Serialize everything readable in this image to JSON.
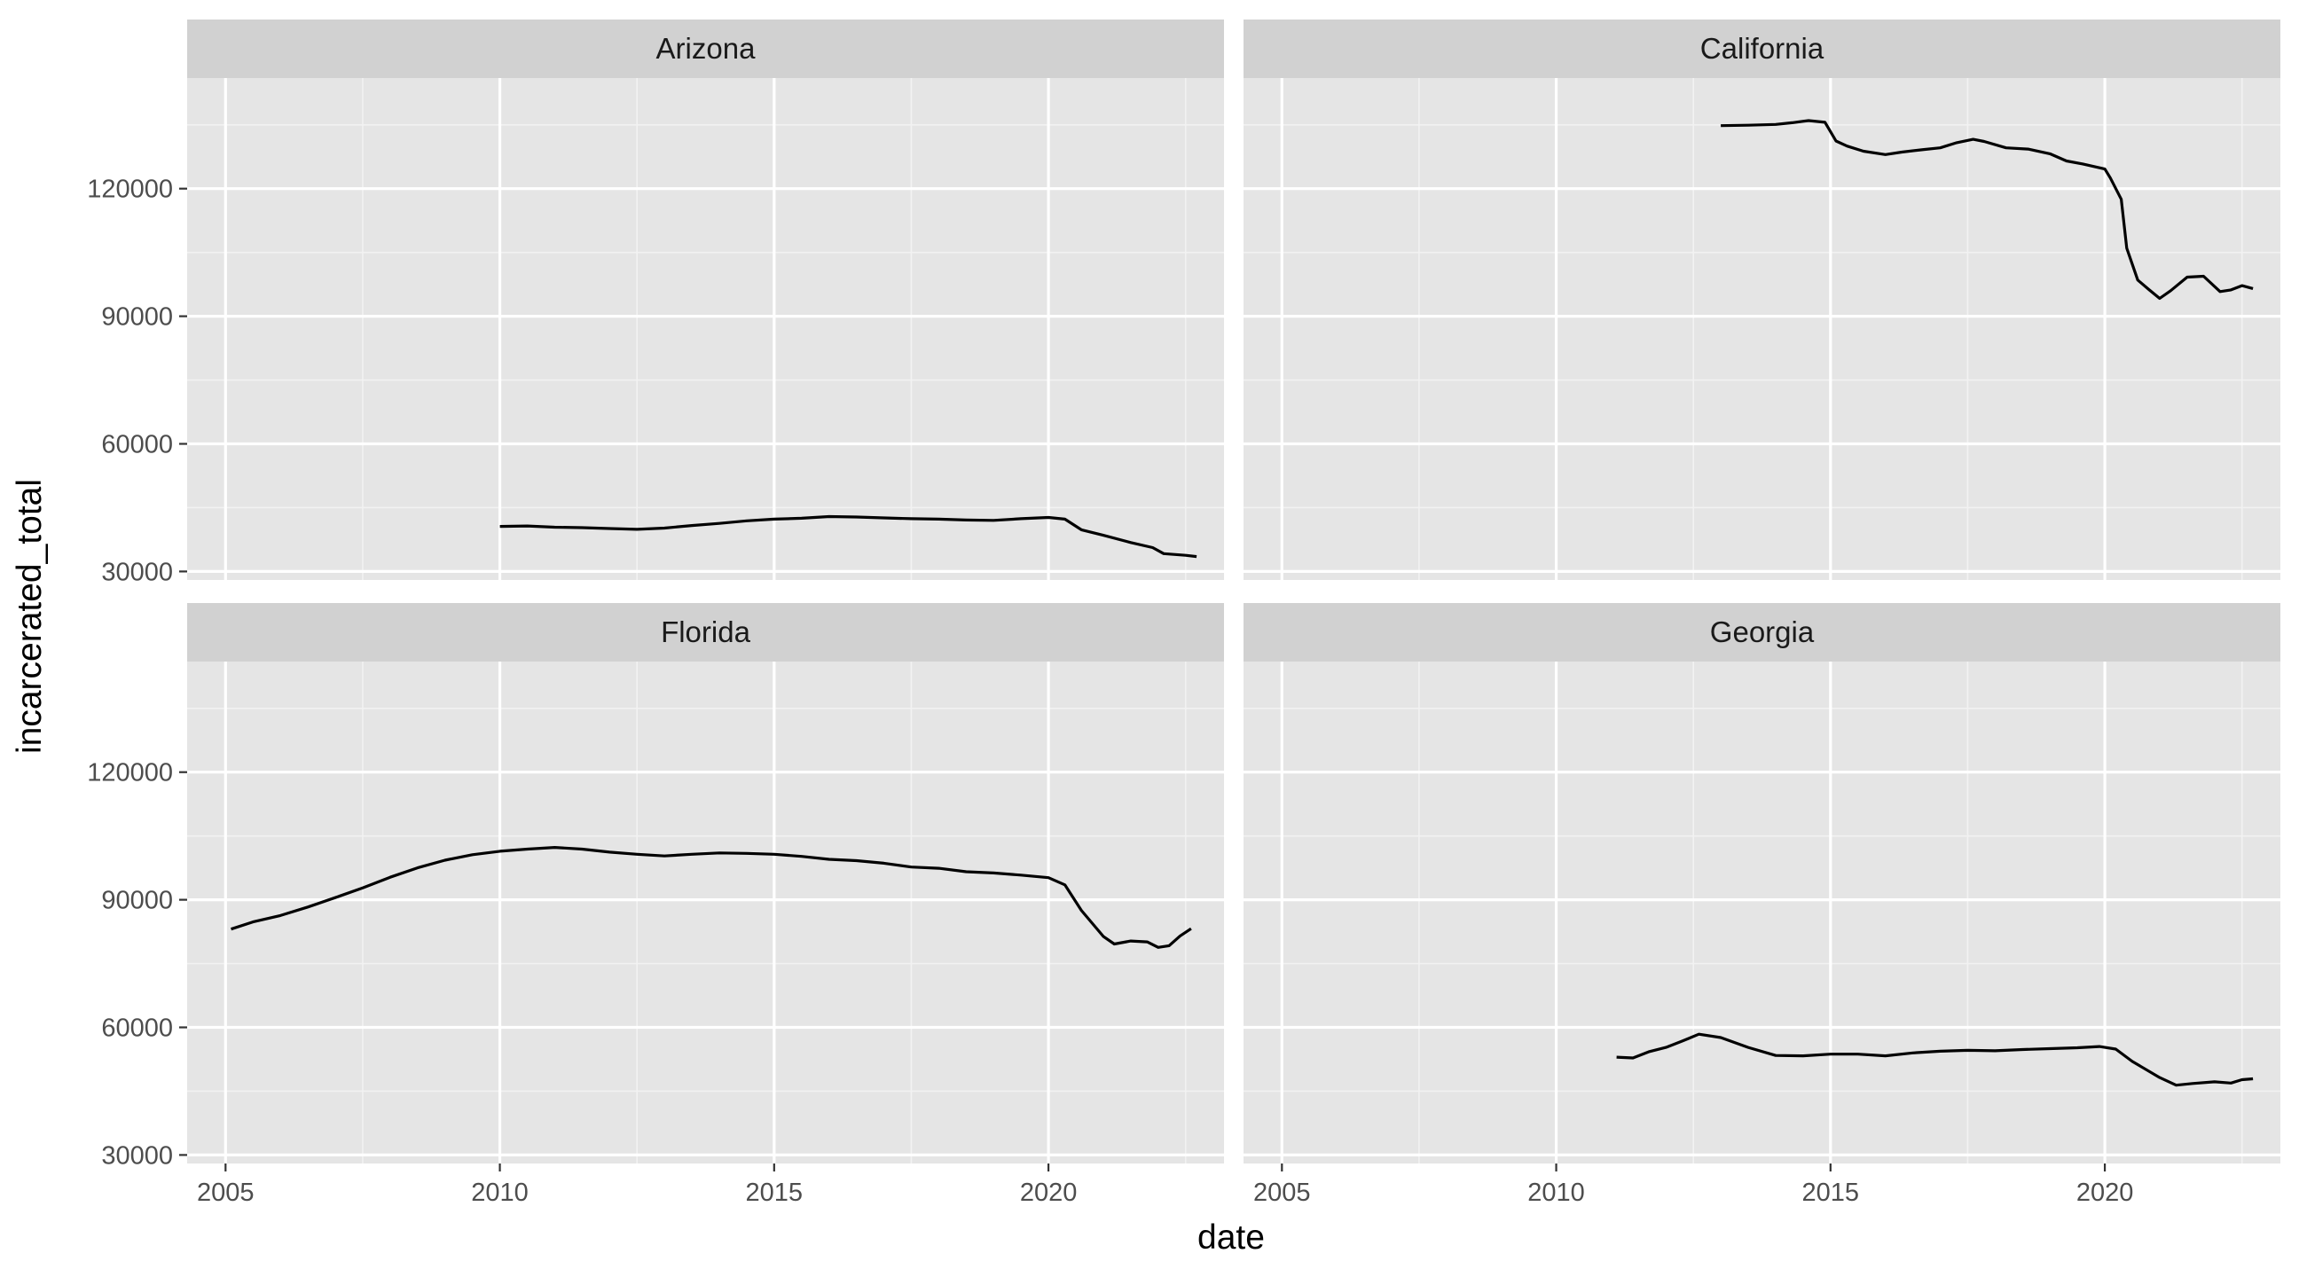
{
  "chart_data": {
    "type": "line",
    "layout": "facet-wrap 2x2",
    "xlabel": "date",
    "ylabel": "incarcerated_total",
    "xlim": [
      2004.3,
      2023.2
    ],
    "ylim": [
      28000,
      146000
    ],
    "x_ticks": [
      2005,
      2010,
      2015,
      2020
    ],
    "x_tick_labels": [
      "2005",
      "2010",
      "2015",
      "2020"
    ],
    "y_ticks": [
      30000,
      60000,
      90000,
      120000
    ],
    "y_tick_labels": [
      "30000",
      "60000",
      "90000",
      "120000"
    ],
    "grid": true,
    "panel_background": "#e5e5e5",
    "strip_background": "#d1d1d1",
    "line_color": "#000000",
    "panels": [
      {
        "name": "Arizona",
        "x": [
          2010.0,
          2010.5,
          2011.0,
          2011.5,
          2012.0,
          2012.5,
          2013.0,
          2013.5,
          2014.0,
          2014.5,
          2015.0,
          2015.5,
          2016.0,
          2016.5,
          2017.0,
          2017.5,
          2018.0,
          2018.5,
          2019.0,
          2019.5,
          2020.0,
          2020.3,
          2020.6,
          2021.0,
          2021.5,
          2021.9,
          2022.1,
          2022.5,
          2022.7
        ],
        "y": [
          40600,
          40700,
          40400,
          40300,
          40100,
          39900,
          40200,
          40800,
          41300,
          41900,
          42300,
          42500,
          42900,
          42800,
          42600,
          42400,
          42300,
          42100,
          42000,
          42400,
          42700,
          42300,
          39800,
          38500,
          36800,
          35600,
          34200,
          33800,
          33500
        ]
      },
      {
        "name": "California",
        "x": [
          2013.0,
          2013.5,
          2014.0,
          2014.3,
          2014.6,
          2014.9,
          2015.1,
          2015.3,
          2015.6,
          2016.0,
          2016.3,
          2016.7,
          2017.0,
          2017.3,
          2017.6,
          2017.8,
          2018.2,
          2018.6,
          2019.0,
          2019.3,
          2019.6,
          2020.0,
          2020.1,
          2020.3,
          2020.4,
          2020.6,
          2020.8,
          2021.0,
          2021.2,
          2021.5,
          2021.8,
          2022.1,
          2022.3,
          2022.5,
          2022.7
        ],
        "y": [
          134800,
          134900,
          135100,
          135500,
          136000,
          135600,
          131200,
          130000,
          128800,
          128000,
          128600,
          129200,
          129600,
          130800,
          131600,
          131100,
          129600,
          129300,
          128200,
          126500,
          125800,
          124600,
          122500,
          117500,
          106000,
          98500,
          96300,
          94200,
          96000,
          99200,
          99400,
          95800,
          96200,
          97200,
          96500
        ]
      },
      {
        "name": "Florida",
        "x": [
          2005.1,
          2005.5,
          2006.0,
          2006.5,
          2007.0,
          2007.5,
          2008.0,
          2008.5,
          2009.0,
          2009.5,
          2010.0,
          2010.5,
          2011.0,
          2011.5,
          2012.0,
          2012.5,
          2013.0,
          2013.5,
          2014.0,
          2014.5,
          2015.0,
          2015.5,
          2016.0,
          2016.5,
          2017.0,
          2017.5,
          2018.0,
          2018.5,
          2019.0,
          2019.5,
          2020.0,
          2020.3,
          2020.6,
          2021.0,
          2021.2,
          2021.5,
          2021.8,
          2022.0,
          2022.2,
          2022.4,
          2022.6
        ],
        "y": [
          83100,
          84800,
          86300,
          88300,
          90500,
          92800,
          95300,
          97500,
          99300,
          100600,
          101400,
          101900,
          102300,
          101900,
          101200,
          100700,
          100300,
          100700,
          101000,
          100900,
          100700,
          100200,
          99500,
          99200,
          98600,
          97700,
          97400,
          96600,
          96300,
          95800,
          95200,
          93500,
          87500,
          81400,
          79600,
          80300,
          80100,
          78800,
          79200,
          81500,
          83200
        ]
      },
      {
        "name": "Georgia",
        "x": [
          2011.1,
          2011.4,
          2011.7,
          2012.0,
          2012.3,
          2012.6,
          2013.0,
          2013.5,
          2014.0,
          2014.5,
          2015.0,
          2015.5,
          2016.0,
          2016.5,
          2017.0,
          2017.5,
          2018.0,
          2018.5,
          2019.0,
          2019.5,
          2019.9,
          2020.2,
          2020.5,
          2021.0,
          2021.3,
          2021.6,
          2022.0,
          2022.3,
          2022.5,
          2022.7
        ],
        "y": [
          53000,
          52800,
          54300,
          55300,
          56800,
          58400,
          57600,
          55300,
          53400,
          53300,
          53700,
          53700,
          53300,
          54000,
          54400,
          54600,
          54500,
          54800,
          55000,
          55200,
          55500,
          54900,
          52000,
          48200,
          46400,
          46800,
          47200,
          46900,
          47700,
          47900
        ]
      }
    ]
  }
}
